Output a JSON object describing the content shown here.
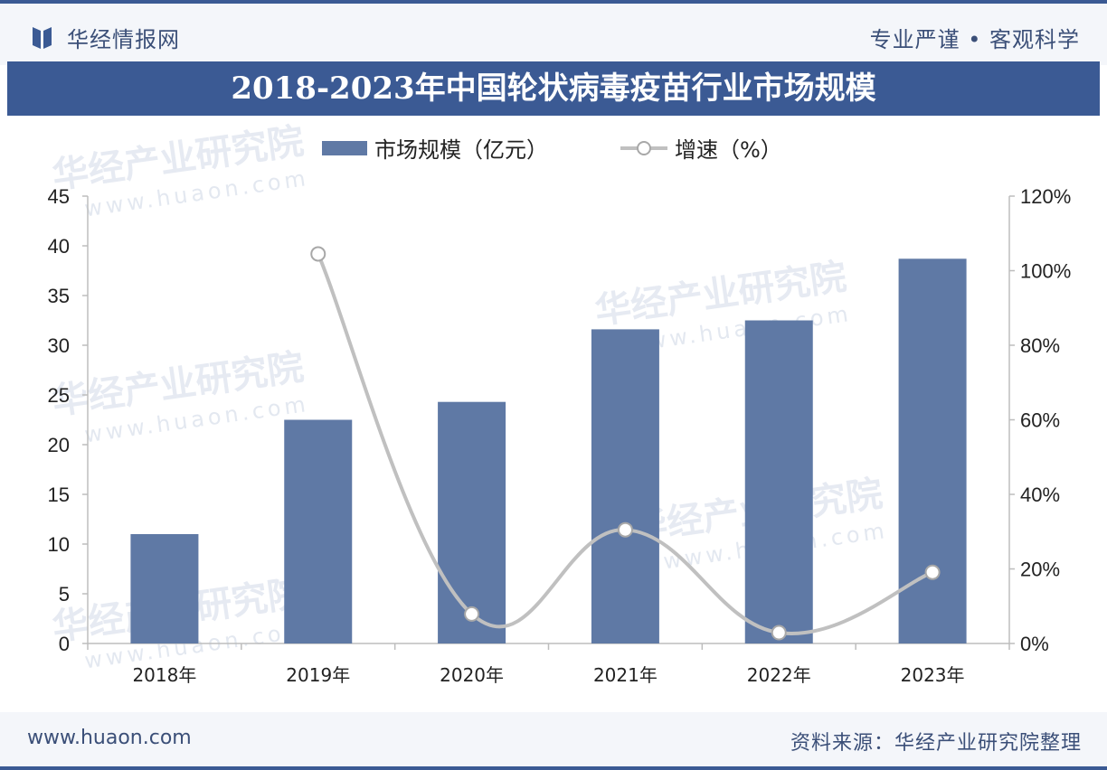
{
  "header": {
    "brand": "华经情报网",
    "tagline": "专业严谨 • 客观科学"
  },
  "footer": {
    "url": "www.huaon.com",
    "source": "资料来源：华经产业研究院整理"
  },
  "watermark": {
    "text": "华经产业研究院",
    "url": "www.huaon.com"
  },
  "colors": {
    "bar": "#5f79a5",
    "line": "#c0c0c0",
    "title_bg": "#3b5a94"
  },
  "chart_data": {
    "type": "bar",
    "title": "2018-2023年中国轮状病毒疫苗行业市场规模",
    "categories": [
      "2018年",
      "2019年",
      "2020年",
      "2021年",
      "2022年",
      "2023年"
    ],
    "series": [
      {
        "name": "市场规模（亿元）",
        "type": "bar",
        "axis": "left",
        "values": [
          11.0,
          22.5,
          24.3,
          31.6,
          32.5,
          38.7
        ]
      },
      {
        "name": "增速（%）",
        "type": "line",
        "axis": "right",
        "values": [
          null,
          104.5,
          7.9,
          30.5,
          2.9,
          19.1
        ]
      }
    ],
    "y_left": {
      "min": 0,
      "max": 45,
      "step": 5,
      "ticks": [
        "0",
        "5",
        "10",
        "15",
        "20",
        "25",
        "30",
        "35",
        "40",
        "45"
      ]
    },
    "y_right": {
      "min": 0,
      "max": 120,
      "step": 20,
      "ticks": [
        "0%",
        "20%",
        "40%",
        "60%",
        "80%",
        "100%",
        "120%"
      ]
    },
    "legend": "top",
    "grid": false
  }
}
